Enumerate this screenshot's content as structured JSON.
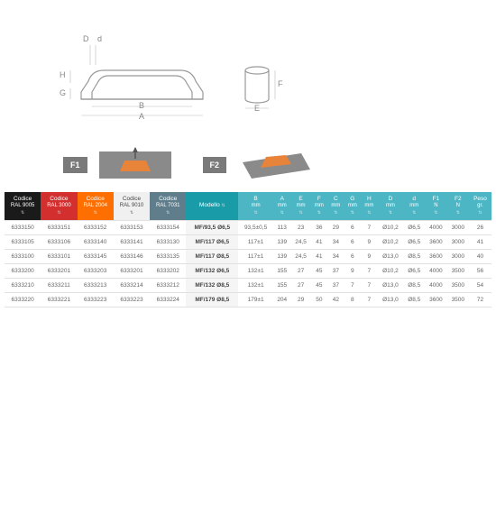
{
  "diagram": {
    "labels": [
      "D",
      "d",
      "H",
      "G",
      "B",
      "A",
      "F",
      "E"
    ],
    "stroke": "#999999",
    "dim_stroke": "#bbbbbb"
  },
  "forces": {
    "f1": "F1",
    "f2": "F2",
    "plate_color": "#8a8a8a",
    "handle_color": "#e8843a"
  },
  "headers": [
    {
      "cls": "h0",
      "t": "Codice",
      "s": "RAL 9005"
    },
    {
      "cls": "h1",
      "t": "Codice",
      "s": "RAL 3000"
    },
    {
      "cls": "h2",
      "t": "Codice",
      "s": "RAL 2004"
    },
    {
      "cls": "h3",
      "t": "Codice",
      "s": "RAL 9010"
    },
    {
      "cls": "h4",
      "t": "Codice",
      "s": "RAL 7031"
    },
    {
      "cls": "hm",
      "t": "Modello",
      "s": ""
    },
    {
      "cls": "hd",
      "t": "B",
      "s": "mm"
    },
    {
      "cls": "hd",
      "t": "A",
      "s": "mm"
    },
    {
      "cls": "hd",
      "t": "E",
      "s": "mm"
    },
    {
      "cls": "hd",
      "t": "F",
      "s": "mm"
    },
    {
      "cls": "hd",
      "t": "C",
      "s": "mm"
    },
    {
      "cls": "hd",
      "t": "G",
      "s": "mm"
    },
    {
      "cls": "hd",
      "t": "H",
      "s": "mm"
    },
    {
      "cls": "hd",
      "t": "D",
      "s": "mm"
    },
    {
      "cls": "hd",
      "t": "d",
      "s": "mm"
    },
    {
      "cls": "hd",
      "t": "F1",
      "s": "N"
    },
    {
      "cls": "hd",
      "t": "F2",
      "s": "N"
    },
    {
      "cls": "hd",
      "t": "Peso",
      "s": "gr."
    }
  ],
  "rows": [
    [
      "6333150",
      "6333151",
      "6333152",
      "6333153",
      "6333154",
      "MF/93,5 Ø6,5",
      "93,5±0,5",
      "113",
      "23",
      "36",
      "29",
      "6",
      "7",
      "Ø10,2",
      "Ø6,5",
      "4000",
      "3000",
      "26"
    ],
    [
      "6333105",
      "6333106",
      "6333140",
      "6333141",
      "6333130",
      "MF/117 Ø6,5",
      "117±1",
      "139",
      "24,5",
      "41",
      "34",
      "6",
      "9",
      "Ø10,2",
      "Ø6,5",
      "3600",
      "3000",
      "41"
    ],
    [
      "6333100",
      "6333101",
      "6333145",
      "6333146",
      "6333135",
      "MF/117 Ø8,5",
      "117±1",
      "139",
      "24,5",
      "41",
      "34",
      "6",
      "9",
      "Ø13,0",
      "Ø8,5",
      "3600",
      "3000",
      "40"
    ],
    [
      "6333200",
      "6333201",
      "6333203",
      "6333201",
      "6333202",
      "MF/132 Ø6,5",
      "132±1",
      "155",
      "27",
      "45",
      "37",
      "9",
      "7",
      "Ø10,2",
      "Ø6,5",
      "4000",
      "3500",
      "56"
    ],
    [
      "6333210",
      "6333211",
      "6333213",
      "6333214",
      "6333212",
      "MF/132 Ø8,5",
      "132±1",
      "155",
      "27",
      "45",
      "37",
      "7",
      "7",
      "Ø13,0",
      "Ø8,5",
      "4000",
      "3500",
      "54"
    ],
    [
      "6333220",
      "6333221",
      "6333223",
      "6333223",
      "6333224",
      "MF/179 Ø8,5",
      "179±1",
      "204",
      "29",
      "50",
      "42",
      "8",
      "7",
      "Ø13,0",
      "Ø8,5",
      "3600",
      "3500",
      "72"
    ]
  ]
}
